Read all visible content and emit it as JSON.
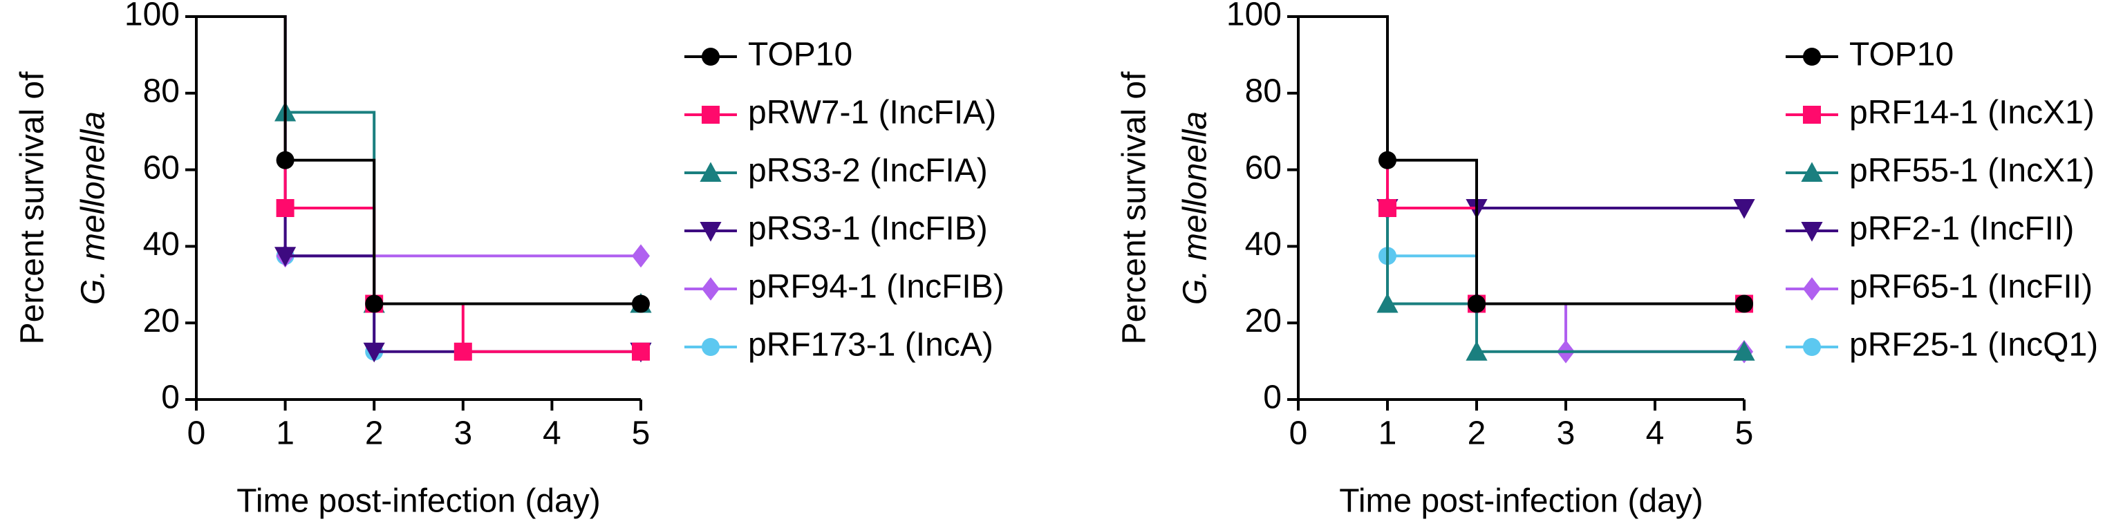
{
  "chart_data": [
    {
      "type": "step",
      "y_label": [
        "Percent survival of",
        "G. mellonella"
      ],
      "x_label": "Time post-infection (day)",
      "xlim": [
        0,
        5
      ],
      "xticks": [
        0,
        1,
        2,
        3,
        4,
        5
      ],
      "ylim": [
        0,
        100
      ],
      "yticks": [
        0,
        20,
        40,
        60,
        80,
        100
      ],
      "legend": "right",
      "series": [
        {
          "name": "TOP10",
          "color": "#000000",
          "marker": "circle",
          "x": [
            0,
            1,
            2,
            5
          ],
          "values": [
            100,
            62.5,
            25,
            25
          ]
        },
        {
          "name": "pRW7-1 (IncFIA)",
          "color": "#ff0a6c",
          "marker": "square",
          "x": [
            0,
            1,
            2,
            3,
            5
          ],
          "values": [
            100,
            50,
            25,
            12.5,
            12.5
          ]
        },
        {
          "name": "pRS3-2 (IncFIA)",
          "color": "#1a7f7f",
          "marker": "triangle-up",
          "x": [
            0,
            1,
            2,
            5
          ],
          "values": [
            100,
            75,
            25,
            25
          ]
        },
        {
          "name": "pRS3-1 (IncFIB)",
          "color": "#3d0a80",
          "marker": "triangle-down",
          "x": [
            0,
            1,
            2,
            5
          ],
          "values": [
            100,
            37.5,
            12.5,
            12.5
          ]
        },
        {
          "name": "pRF94-1 (IncFIB)",
          "color": "#b060f0",
          "marker": "diamond",
          "x": [
            0,
            1,
            5
          ],
          "values": [
            100,
            37.5,
            37.5
          ]
        },
        {
          "name": "pRF173-1 (IncA)",
          "color": "#5cc8f0",
          "marker": "circle",
          "x": [
            0,
            1,
            2
          ],
          "values": [
            100,
            37.5,
            12.5
          ]
        }
      ]
    },
    {
      "type": "step",
      "y_label": [
        "Percent survival of",
        "G. mellonella"
      ],
      "x_label": "Time post-infection (day)",
      "xlim": [
        0,
        5
      ],
      "xticks": [
        0,
        1,
        2,
        3,
        4,
        5
      ],
      "ylim": [
        0,
        100
      ],
      "yticks": [
        0,
        20,
        40,
        60,
        80,
        100
      ],
      "legend": "right",
      "series": [
        {
          "name": "TOP10",
          "color": "#000000",
          "marker": "circle",
          "x": [
            0,
            1,
            2,
            5
          ],
          "values": [
            100,
            62.5,
            25,
            25
          ]
        },
        {
          "name": "pRF14-1 (IncX1)",
          "color": "#ff0a6c",
          "marker": "square",
          "x": [
            0,
            1,
            2,
            5
          ],
          "values": [
            100,
            50,
            25,
            25
          ]
        },
        {
          "name": "pRF55-1 (IncX1)",
          "color": "#1a7f7f",
          "marker": "triangle-up",
          "x": [
            0,
            1,
            2,
            5
          ],
          "values": [
            100,
            25,
            12.5,
            12.5
          ]
        },
        {
          "name": "pRF2-1 (IncFII)",
          "color": "#3d0a80",
          "marker": "triangle-down",
          "x": [
            0,
            1,
            2,
            5
          ],
          "values": [
            100,
            50,
            50,
            50
          ]
        },
        {
          "name": "pRF65-1 (IncFII)",
          "color": "#b060f0",
          "marker": "diamond",
          "x": [
            0,
            1,
            2,
            3,
            5
          ],
          "values": [
            100,
            50,
            25,
            12.5,
            12.5
          ]
        },
        {
          "name": "pRF25-1 (IncQ1)",
          "color": "#5cc8f0",
          "marker": "circle",
          "x": [
            0,
            1,
            2,
            5
          ],
          "values": [
            100,
            37.5,
            25,
            25
          ]
        }
      ]
    }
  ]
}
